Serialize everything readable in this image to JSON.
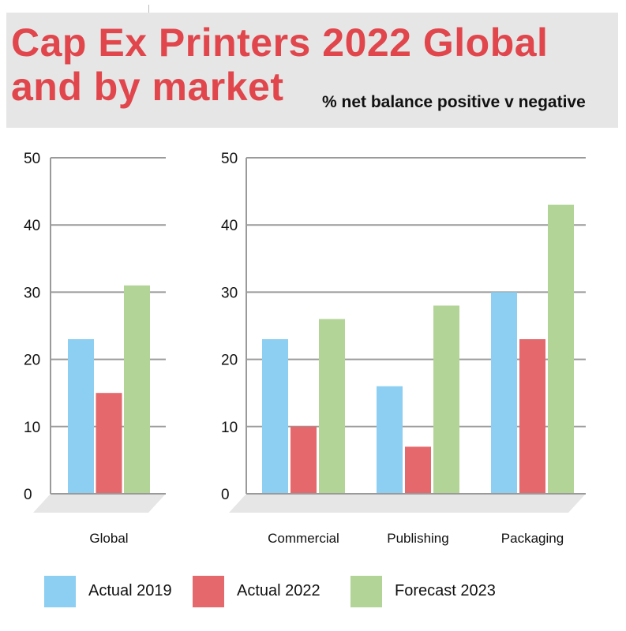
{
  "header": {
    "title_line1": "Cap Ex Printers 2022 Global",
    "title_line2": "and by market",
    "subtitle": "% net balance positive v negative"
  },
  "colors": {
    "title": "#e0464b",
    "header_bg": "#e6e6e6",
    "actual_2019": "#8ccff2",
    "actual_2022": "#e4686c",
    "forecast_2023": "#b2d496"
  },
  "legend": [
    {
      "label": "Actual 2019",
      "color": "#8ccff2"
    },
    {
      "label": "Actual 2022",
      "color": "#e4686c"
    },
    {
      "label": "Forecast 2023",
      "color": "#b2d496"
    }
  ],
  "chart_data": [
    {
      "type": "bar",
      "categories": [
        "Global"
      ],
      "series": [
        {
          "name": "Actual 2019",
          "values": [
            23
          ]
        },
        {
          "name": "Actual 2022",
          "values": [
            15
          ]
        },
        {
          "name": "Forecast 2023",
          "values": [
            31
          ]
        }
      ],
      "yticks": [
        0,
        10,
        20,
        30,
        40,
        50
      ],
      "ylim": [
        0,
        50
      ],
      "grid": true
    },
    {
      "type": "bar",
      "categories": [
        "Commercial",
        "Publishing",
        "Packaging"
      ],
      "series": [
        {
          "name": "Actual 2019",
          "values": [
            23,
            16,
            30
          ]
        },
        {
          "name": "Actual 2022",
          "values": [
            10,
            7,
            23
          ]
        },
        {
          "name": "Forecast 2023",
          "values": [
            26,
            28,
            43
          ]
        }
      ],
      "yticks": [
        0,
        10,
        20,
        30,
        40,
        50
      ],
      "ylim": [
        0,
        50
      ],
      "grid": true
    }
  ]
}
